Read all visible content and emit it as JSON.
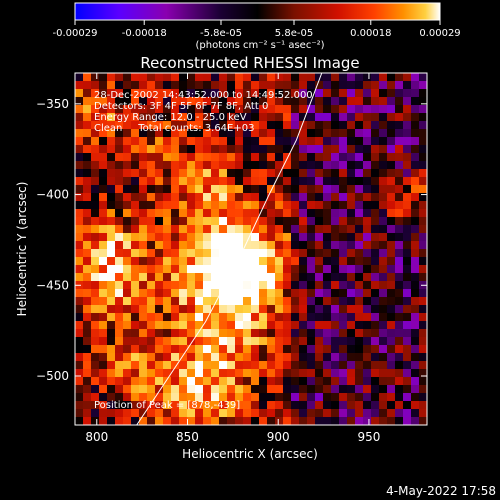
{
  "colorbar": {
    "ticks": [
      "-0.00029",
      "-0.00018",
      "-5.8e-05",
      "5.8e-05",
      "0.00018",
      "0.00029"
    ],
    "tick_values": [
      -0.00029,
      -0.00018,
      -5.8e-05,
      5.8e-05,
      0.00018,
      0.00029
    ],
    "range": [
      -0.00029,
      0.00029
    ],
    "units": "(photons cm⁻² s⁻¹ asec⁻²)",
    "colors": [
      "#0000ff",
      "#5a00ff",
      "#8a00b0",
      "#1a0033",
      "#000000",
      "#7a1000",
      "#d01000",
      "#ff4000",
      "#ff9000",
      "#ffd040",
      "#ffffff"
    ]
  },
  "annotations": {
    "line1": "28-Dec-2002 14:43:52.000 to 14:49:52.000",
    "line2": "Detectors: 3F 4F 5F 6F 7F 8F, Att 0",
    "line3": "Energy Range: 12.0 - 25.0 keV",
    "line4": "Clean     Total counts: 3.64E+03",
    "peak": "Position of Peak = [878,-439]"
  },
  "footer": {
    "date": "4-May-2022 17:58"
  },
  "chart_data": {
    "type": "heatmap",
    "title": "Reconstructed RHESSI Image",
    "xlabel": "Heliocentric X (arcsec)",
    "ylabel": "Heliocentric Y (arcsec)",
    "xlim": [
      788,
      982
    ],
    "ylim": [
      -527,
      -333
    ],
    "xticks": [
      800,
      850,
      900,
      950
    ],
    "xtick_labels": [
      "800",
      "850",
      "900",
      "950"
    ],
    "yticks": [
      -350,
      -400,
      -450,
      -500
    ],
    "ytick_labels": [
      "−350",
      "−400",
      "−450",
      "−500"
    ],
    "peak": {
      "x": 878,
      "y": -439
    },
    "limb_line": [
      [
        822,
        -527
      ],
      [
        840,
        -500
      ],
      [
        860,
        -470
      ],
      [
        880,
        -432
      ],
      [
        895,
        -400
      ],
      [
        910,
        -370
      ],
      [
        924,
        -333
      ]
    ],
    "grid": false,
    "legend": "none"
  }
}
